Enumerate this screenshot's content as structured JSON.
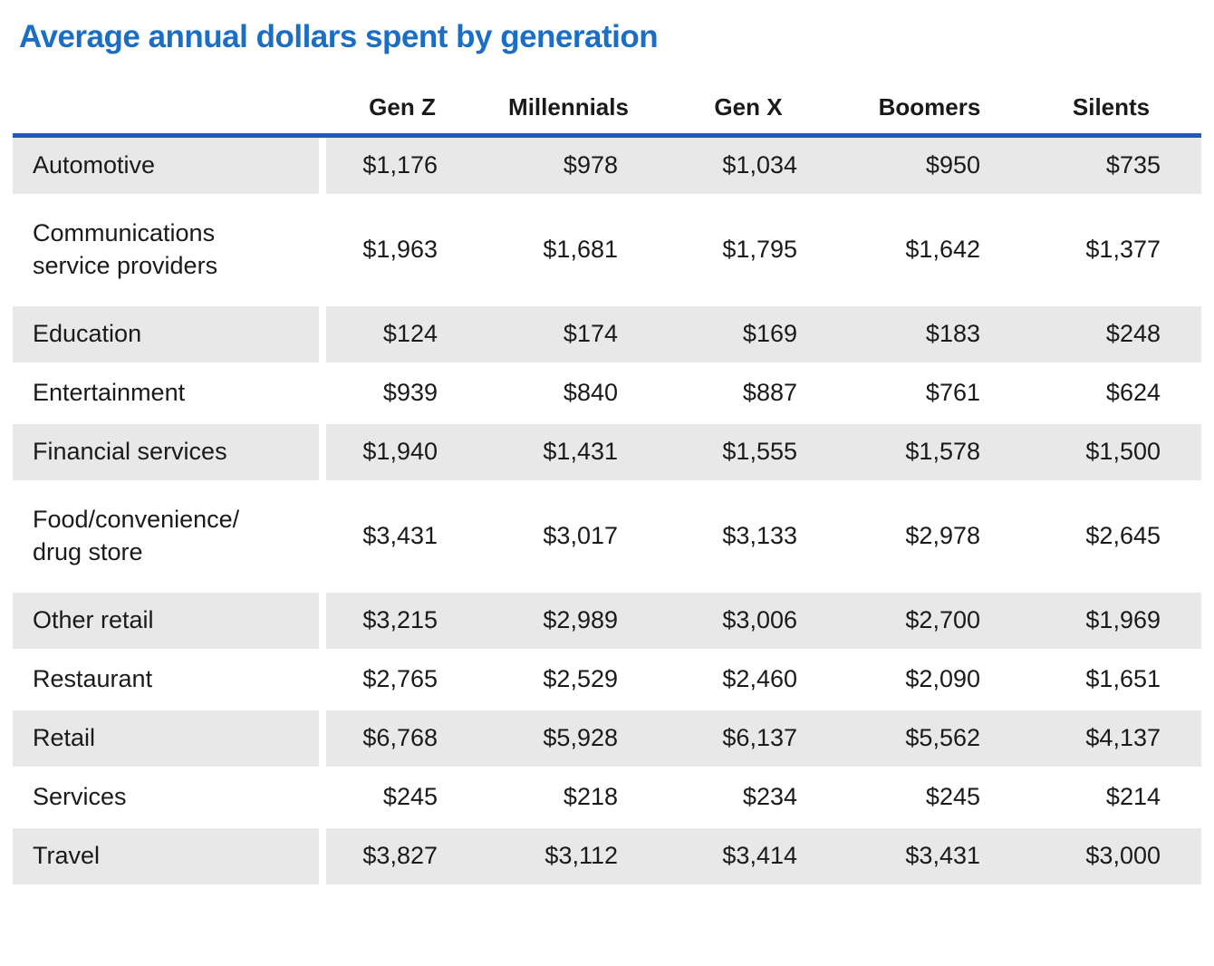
{
  "title": "Average annual dollars spent by generation",
  "colors": {
    "title_blue": "#1b6ec4",
    "rule_blue": "#2059b8",
    "row_shade": "#e8e8e8",
    "text_dark": "#1a1a1a"
  },
  "table": {
    "columns": [
      "Gen Z",
      "Millennials",
      "Gen X",
      "Boomers",
      "Silents"
    ],
    "rows": [
      {
        "category": "Automotive",
        "values": [
          "$1,176",
          "$978",
          "$1,034",
          "$950",
          "$735"
        ]
      },
      {
        "category": "Communications\nservice providers",
        "values": [
          "$1,963",
          "$1,681",
          "$1,795",
          "$1,642",
          "$1,377"
        ]
      },
      {
        "category": "Education",
        "values": [
          "$124",
          "$174",
          "$169",
          "$183",
          "$248"
        ]
      },
      {
        "category": "Entertainment",
        "values": [
          "$939",
          "$840",
          "$887",
          "$761",
          "$624"
        ]
      },
      {
        "category": "Financial services",
        "values": [
          "$1,940",
          "$1,431",
          "$1,555",
          "$1,578",
          "$1,500"
        ]
      },
      {
        "category": "Food/convenience/\ndrug store",
        "values": [
          "$3,431",
          "$3,017",
          "$3,133",
          "$2,978",
          "$2,645"
        ]
      },
      {
        "category": "Other retail",
        "values": [
          "$3,215",
          "$2,989",
          "$3,006",
          "$2,700",
          "$1,969"
        ]
      },
      {
        "category": "Restaurant",
        "values": [
          "$2,765",
          "$2,529",
          "$2,460",
          "$2,090",
          "$1,651"
        ]
      },
      {
        "category": "Retail",
        "values": [
          "$6,768",
          "$5,928",
          "$6,137",
          "$5,562",
          "$4,137"
        ]
      },
      {
        "category": "Services",
        "values": [
          "$245",
          "$218",
          "$234",
          "$245",
          "$214"
        ]
      },
      {
        "category": "Travel",
        "values": [
          "$3,827",
          "$3,112",
          "$3,414",
          "$3,431",
          "$3,000"
        ]
      }
    ]
  },
  "chart_data": {
    "type": "table",
    "title": "Average annual dollars spent by generation",
    "categories": [
      "Automotive",
      "Communications service providers",
      "Education",
      "Entertainment",
      "Financial services",
      "Food/convenience/drug store",
      "Other retail",
      "Restaurant",
      "Retail",
      "Services",
      "Travel"
    ],
    "series": [
      {
        "name": "Gen Z",
        "values": [
          1176,
          1963,
          124,
          939,
          1940,
          3431,
          3215,
          2765,
          6768,
          245,
          3827
        ]
      },
      {
        "name": "Millennials",
        "values": [
          978,
          1681,
          174,
          840,
          1431,
          3017,
          2989,
          2529,
          5928,
          218,
          3112
        ]
      },
      {
        "name": "Gen X",
        "values": [
          1034,
          1795,
          169,
          887,
          1555,
          3133,
          3006,
          2460,
          6137,
          234,
          3414
        ]
      },
      {
        "name": "Boomers",
        "values": [
          950,
          1642,
          183,
          761,
          1578,
          2978,
          2700,
          2090,
          5562,
          245,
          3431
        ]
      },
      {
        "name": "Silents",
        "values": [
          735,
          1377,
          248,
          624,
          1500,
          2645,
          1969,
          1651,
          4137,
          214,
          3000
        ]
      }
    ],
    "units": "USD per year",
    "layout": {
      "row_shading": "alternating starting with first data row",
      "header_rule_color": "#2059b8"
    }
  }
}
